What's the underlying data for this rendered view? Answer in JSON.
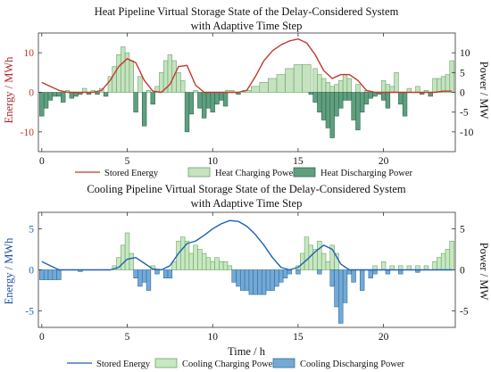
{
  "colors": {
    "heat_energy": "#c0392b",
    "heat_charge_fill": "#c5e3bf",
    "heat_charge_edge": "#6aa36a",
    "heat_discharge_fill": "#5f9e7e",
    "heat_discharge_edge": "#2f6a4f",
    "cool_energy": "#1f5fb8",
    "cool_charge_fill": "#c8e8c0",
    "cool_charge_edge": "#6aa36a",
    "cool_discharge_fill": "#74a9d6",
    "cool_discharge_edge": "#2d6e9e"
  },
  "chart_data": [
    {
      "type": "bar",
      "title": "Heat Pipeline Virtual Storage State of the Delay-Considered System",
      "subtitle": "with Adaptive Time Step",
      "xlabel": "",
      "ylabel_left": "Energy / MWh",
      "ylabel_right": "Power / MW",
      "xlim": [
        -0.2,
        24.2
      ],
      "ylim_left": [
        -15,
        15
      ],
      "ylim_right": [
        -15,
        15
      ],
      "xticks": [
        0,
        5,
        10,
        15,
        20
      ],
      "yticks_left": [
        -10,
        0,
        10
      ],
      "yticks_right": [
        -10,
        -5,
        0,
        5,
        10
      ],
      "grid": false,
      "legend": "bottom",
      "series": [
        {
          "name": "Stored Energy",
          "kind": "line",
          "axis": "left",
          "x": [
            0,
            0.5,
            1,
            1.5,
            2,
            2.5,
            3,
            3.5,
            4,
            4.5,
            5,
            5.5,
            6,
            6.5,
            7,
            7.5,
            8,
            8.5,
            9,
            9.5,
            10,
            10.5,
            11,
            11.5,
            12,
            12.5,
            13,
            13.5,
            14,
            14.5,
            15,
            15.5,
            16,
            16.5,
            17,
            17.5,
            18,
            18.5,
            19,
            19.5,
            20,
            20.5,
            21,
            21.5,
            22,
            22.5,
            23,
            23.5,
            24
          ],
          "y": [
            2.5,
            1.5,
            0.5,
            0,
            0,
            0,
            0,
            0.5,
            3,
            6.5,
            8.5,
            7.5,
            3,
            0.3,
            0,
            2,
            6.5,
            6.8,
            1.8,
            0,
            0,
            0,
            0,
            0,
            0.5,
            4,
            8,
            10.5,
            12,
            13,
            13.5,
            12.5,
            9.5,
            5.5,
            3.5,
            4.5,
            4.5,
            3,
            0.5,
            0,
            0,
            0,
            0,
            0,
            0,
            0,
            0,
            0.3,
            0.3
          ]
        },
        {
          "name": "Heat Charging Power",
          "kind": "bar",
          "axis": "right",
          "x": [
            1.5,
            2.5,
            3.0,
            3.5,
            4.0,
            4.25,
            4.5,
            4.75,
            5.0,
            5.25,
            5.75,
            6.25,
            6.75,
            7.0,
            7.25,
            7.5,
            7.75,
            8.0,
            8.25,
            9.0,
            11.0,
            12.0,
            12.5,
            13.0,
            13.5,
            14.0,
            14.5,
            15.0,
            15.5,
            16.0,
            16.25,
            16.5,
            16.75,
            17.0,
            17.25,
            17.5,
            17.75,
            18.0,
            18.5,
            19.0,
            20.0,
            20.25,
            20.5,
            20.75,
            21.5,
            22.0,
            22.5,
            23.0,
            23.25,
            23.5,
            23.75,
            24.0
          ],
          "width": [
            0.25,
            0.25,
            0.25,
            0.25,
            0.25,
            0.25,
            0.25,
            0.25,
            0.25,
            0.25,
            0.25,
            0.25,
            0.25,
            0.25,
            0.25,
            0.25,
            0.25,
            0.25,
            0.25,
            0.25,
            0.5,
            0.5,
            0.5,
            0.5,
            0.5,
            0.5,
            0.5,
            0.5,
            0.5,
            0.25,
            0.25,
            0.25,
            0.25,
            0.25,
            0.25,
            0.25,
            0.25,
            0.25,
            0.25,
            0.25,
            0.25,
            0.25,
            0.25,
            0.25,
            0.25,
            0.25,
            0.25,
            0.25,
            0.25,
            0.25,
            0.25,
            0.25
          ],
          "values": [
            0.5,
            1,
            0.5,
            1,
            4,
            6.5,
            9.5,
            11.5,
            10,
            8,
            4,
            0.5,
            1.5,
            5,
            8,
            9.5,
            8,
            5,
            3,
            0.5,
            0.5,
            0.5,
            1.5,
            2.5,
            3.5,
            4.5,
            6,
            7,
            7,
            6,
            4.5,
            3.5,
            2.5,
            1.5,
            2,
            3,
            4.5,
            3.5,
            2,
            0.5,
            3,
            2,
            1.5,
            5,
            1,
            1.5,
            0.5,
            3.5,
            3.5,
            4,
            4.5,
            8
          ]
        },
        {
          "name": "Heat Discharging Power",
          "kind": "bar",
          "axis": "right",
          "x": [
            0.0,
            0.25,
            0.5,
            0.75,
            1.0,
            1.25,
            1.75,
            2.0,
            2.25,
            2.75,
            3.25,
            3.75,
            5.5,
            6.0,
            6.5,
            8.5,
            8.75,
            9.25,
            9.5,
            9.75,
            10.0,
            10.25,
            10.5,
            10.75,
            11.5,
            15.75,
            16.0,
            16.25,
            16.5,
            16.75,
            17.0,
            17.25,
            17.5,
            17.75,
            18.0,
            18.25,
            18.5,
            18.75,
            19.0,
            19.25,
            19.5,
            19.75,
            20.0,
            20.25,
            21.0,
            21.25,
            22.25,
            22.75
          ],
          "width": [
            0.25,
            0.25,
            0.25,
            0.25,
            0.25,
            0.25,
            0.25,
            0.25,
            0.25,
            0.25,
            0.25,
            0.25,
            0.25,
            0.25,
            0.25,
            0.25,
            0.25,
            0.25,
            0.25,
            0.25,
            0.25,
            0.25,
            0.25,
            0.25,
            0.25,
            0.25,
            0.25,
            0.25,
            0.25,
            0.25,
            0.25,
            0.25,
            0.25,
            0.25,
            0.25,
            0.25,
            0.25,
            0.25,
            0.25,
            0.25,
            0.25,
            0.25,
            0.25,
            0.25,
            0.25,
            0.25,
            0.25,
            0.25
          ],
          "values": [
            -6,
            -4,
            -2,
            -1,
            -1,
            -2.5,
            -1.5,
            -1,
            -0.5,
            -0.5,
            -0.5,
            -1,
            -5,
            -8.5,
            -3,
            -10,
            -5.5,
            -4,
            -6.5,
            -4,
            -5,
            -3,
            -2,
            -3.5,
            -0.5,
            -0.5,
            -2.5,
            -5,
            -7,
            -9,
            -11.5,
            -6,
            -4,
            -2,
            -2,
            -7,
            -9.5,
            -5,
            -3,
            -1.5,
            -1,
            -0.5,
            -2,
            -4,
            -3,
            -6,
            -0.5,
            -1
          ]
        }
      ]
    },
    {
      "type": "bar",
      "title": "Cooling Pipeline Virtual Storage State of the Delay-Considered System",
      "subtitle": "with Adaptive Time Step",
      "xlabel": "Time / h",
      "ylabel_left": "Energy / MWh",
      "ylabel_right": "Power / MW",
      "xlim": [
        -0.2,
        24.2
      ],
      "ylim_left": [
        -7,
        7
      ],
      "ylim_right": [
        -7,
        7
      ],
      "xticks": [
        0,
        5,
        10,
        15,
        20
      ],
      "yticks_left": [
        -5,
        0,
        5
      ],
      "yticks_right": [
        -5,
        0,
        5
      ],
      "grid": false,
      "legend": "bottom",
      "series": [
        {
          "name": "Stored Energy",
          "kind": "line",
          "axis": "left",
          "x": [
            0,
            0.5,
            1,
            1.5,
            2,
            3,
            4,
            4.5,
            5,
            5.5,
            6,
            6.5,
            7,
            7.5,
            8,
            8.5,
            9,
            9.5,
            10,
            10.5,
            11,
            11.5,
            12,
            12.5,
            13,
            13.5,
            14,
            14.5,
            15,
            15.5,
            16,
            16.5,
            17,
            17.5,
            18,
            19,
            20,
            21,
            22,
            23,
            24
          ],
          "y": [
            1,
            0.5,
            0,
            0,
            0,
            0,
            0,
            0.3,
            1.3,
            1.5,
            0.8,
            0.1,
            0,
            0.5,
            2,
            3.2,
            3.5,
            4.2,
            5,
            5.6,
            6,
            5.9,
            5.3,
            4.3,
            3,
            1.5,
            0.3,
            0,
            0.3,
            1.2,
            2.2,
            3,
            2.5,
            0.7,
            0,
            0,
            0,
            0,
            0,
            0,
            0
          ]
        },
        {
          "name": "Cooling Charging Power",
          "kind": "bar",
          "axis": "right",
          "x": [
            4.25,
            4.5,
            4.75,
            5.0,
            5.25,
            6.5,
            7.75,
            8.0,
            8.25,
            8.5,
            8.75,
            9.0,
            9.25,
            9.5,
            9.75,
            10.0,
            10.25,
            10.5,
            10.75,
            11.0,
            15.0,
            15.25,
            15.5,
            15.75,
            16.0,
            16.25,
            16.5,
            16.75,
            17.0,
            17.25,
            19.5,
            20.0,
            20.5,
            21.0,
            21.5,
            22.0,
            22.5,
            23.0,
            23.25,
            23.5,
            23.75,
            24.0
          ],
          "width": [
            0.25,
            0.25,
            0.25,
            0.25,
            0.25,
            0.25,
            0.25,
            0.25,
            0.25,
            0.25,
            0.25,
            0.25,
            0.25,
            0.25,
            0.25,
            0.25,
            0.25,
            0.25,
            0.25,
            0.25,
            0.25,
            0.25,
            0.25,
            0.25,
            0.25,
            0.25,
            0.25,
            0.25,
            0.25,
            0.25,
            0.25,
            0.25,
            0.25,
            0.25,
            0.25,
            0.25,
            0.25,
            0.25,
            0.25,
            0.25,
            0.25,
            0.25
          ],
          "values": [
            0.5,
            1.5,
            3,
            4.5,
            2,
            0.5,
            1,
            3.5,
            4,
            3.5,
            2,
            3,
            2.5,
            2,
            1.5,
            1,
            1.5,
            1,
            1,
            0.5,
            0.5,
            2,
            4,
            3,
            2.5,
            3.5,
            2,
            1,
            3,
            2,
            0.5,
            1,
            0.5,
            0.5,
            0.5,
            0.5,
            0.5,
            1,
            1.5,
            2,
            2.5,
            3.5
          ]
        },
        {
          "name": "Cooling Discharging Power",
          "kind": "bar",
          "axis": "right",
          "x": [
            0.0,
            0.25,
            0.5,
            0.75,
            1.0,
            2.25,
            5.5,
            5.75,
            6.0,
            6.25,
            6.75,
            7.25,
            7.5,
            11.25,
            11.5,
            11.75,
            12.0,
            12.25,
            12.5,
            12.75,
            13.0,
            13.25,
            13.5,
            13.75,
            14.0,
            14.25,
            14.5,
            15.0,
            16.25,
            17.0,
            17.25,
            17.5,
            17.75,
            18.0,
            18.25,
            18.75,
            19.25,
            19.5,
            20.25,
            21.0,
            22.0
          ],
          "width": [
            0.25,
            0.25,
            0.25,
            0.25,
            0.25,
            0.25,
            0.25,
            0.25,
            0.25,
            0.25,
            0.25,
            0.25,
            0.25,
            0.25,
            0.25,
            0.25,
            0.25,
            0.25,
            0.25,
            0.25,
            0.25,
            0.25,
            0.25,
            0.25,
            0.25,
            0.25,
            0.25,
            0.25,
            0.25,
            0.25,
            0.25,
            0.25,
            0.25,
            0.25,
            0.25,
            0.25,
            0.25,
            0.25,
            0.25,
            0.25,
            0.25
          ],
          "values": [
            -1.2,
            -1.2,
            -1.2,
            -1.2,
            -1.2,
            -0.2,
            -1,
            -2,
            -1.5,
            -2.5,
            -0.5,
            -1,
            -1,
            -1.5,
            -2,
            -2.5,
            -2.5,
            -3,
            -3,
            -3,
            -3,
            -2.5,
            -2.5,
            -2,
            -1.5,
            -1,
            -0.5,
            -0.5,
            -0.5,
            -2,
            -4.5,
            -6.5,
            -4,
            -0.5,
            -1.5,
            -2.5,
            -1,
            -0.5,
            -0.5,
            -0.5,
            -0.3
          ]
        }
      ]
    }
  ]
}
